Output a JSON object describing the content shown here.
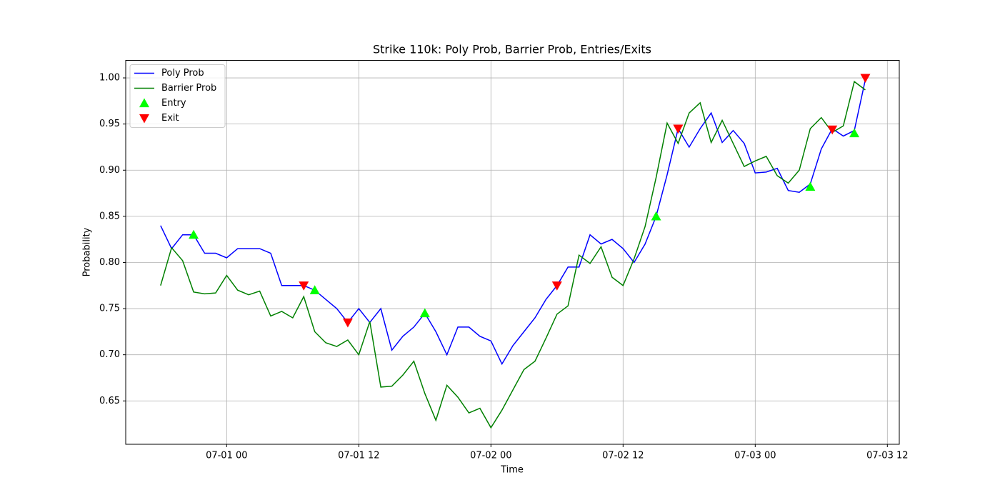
{
  "chart_data": {
    "type": "line",
    "title": "Strike 110k: Poly Prob, Barrier Prob, Entries/Exits",
    "x_label": "Time",
    "y_label": "Probability",
    "grid": true,
    "legend": "upper left",
    "xlim": [
      "06-30 14:50",
      "07-03 13:05"
    ],
    "xticks": [
      "07-01 00",
      "07-01 12",
      "07-02 00",
      "07-02 12",
      "07-03 00",
      "07-03 12"
    ],
    "ylim": [
      0.603,
      1.019
    ],
    "yticks": [
      0.65,
      {
        "value": 0.7,
        "label": "0.70"
      },
      0.75,
      {
        "value": 0.8,
        "label": "0.80"
      },
      0.85,
      {
        "value": 0.9,
        "label": "0.90"
      },
      0.95,
      {
        "value": 1.0,
        "label": "1.00"
      }
    ],
    "series": [
      {
        "name": "Poly Prob",
        "type": "line",
        "color": "#0000ff",
        "x": [
          "06-30 18",
          "06-30 19",
          "06-30 20",
          "06-30 21",
          "06-30 22",
          "06-30 23",
          "07-01 00",
          "07-01 01",
          "07-01 02",
          "07-01 03",
          "07-01 04",
          "07-01 05",
          "07-01 06",
          "07-01 07",
          "07-01 08",
          "07-01 09",
          "07-01 10",
          "07-01 11",
          "07-01 12",
          "07-01 13",
          "07-01 14",
          "07-01 15",
          "07-01 16",
          "07-01 17",
          "07-01 18",
          "07-01 19",
          "07-01 20",
          "07-01 21",
          "07-01 22",
          "07-01 23",
          "07-02 00",
          "07-02 01",
          "07-02 02",
          "07-02 03",
          "07-02 04",
          "07-02 05",
          "07-02 06",
          "07-02 07",
          "07-02 08",
          "07-02 09",
          "07-02 10",
          "07-02 11",
          "07-02 12",
          "07-02 13",
          "07-02 14",
          "07-02 15",
          "07-02 16",
          "07-02 17",
          "07-02 18",
          "07-02 19",
          "07-02 20",
          "07-02 21",
          "07-02 22",
          "07-02 23",
          "07-03 00",
          "07-03 01",
          "07-03 02",
          "07-03 03",
          "07-03 04",
          "07-03 05",
          "07-03 06",
          "07-03 07",
          "07-03 08",
          "07-03 09",
          "07-03 10"
        ],
        "values": [
          0.84,
          0.815,
          0.83,
          0.83,
          0.81,
          0.81,
          0.805,
          0.815,
          0.815,
          0.815,
          0.81,
          0.775,
          0.775,
          0.775,
          0.77,
          0.76,
          0.75,
          0.735,
          0.75,
          0.735,
          0.75,
          0.705,
          0.72,
          0.73,
          0.745,
          0.725,
          0.7,
          0.73,
          0.73,
          0.72,
          0.715,
          0.69,
          0.71,
          0.725,
          0.74,
          0.76,
          0.775,
          0.795,
          0.795,
          0.83,
          0.82,
          0.825,
          0.815,
          0.8,
          0.82,
          0.85,
          0.895,
          0.945,
          0.925,
          0.945,
          0.962,
          0.93,
          0.943,
          0.929,
          0.897,
          0.898,
          0.902,
          0.878,
          0.876,
          0.885,
          0.923,
          0.945,
          0.937,
          0.943,
          0.998
        ]
      },
      {
        "name": "Barrier Prob",
        "type": "line",
        "color": "#008000",
        "x": [
          "06-30 18",
          "06-30 19",
          "06-30 20",
          "06-30 21",
          "06-30 22",
          "06-30 23",
          "07-01 00",
          "07-01 01",
          "07-01 02",
          "07-01 03",
          "07-01 04",
          "07-01 05",
          "07-01 06",
          "07-01 07",
          "07-01 08",
          "07-01 09",
          "07-01 10",
          "07-01 11",
          "07-01 12",
          "07-01 13",
          "07-01 14",
          "07-01 15",
          "07-01 16",
          "07-01 17",
          "07-01 18",
          "07-01 19",
          "07-01 20",
          "07-01 21",
          "07-01 22",
          "07-01 23",
          "07-02 00",
          "07-02 01",
          "07-02 02",
          "07-02 03",
          "07-02 04",
          "07-02 05",
          "07-02 06",
          "07-02 07",
          "07-02 08",
          "07-02 09",
          "07-02 10",
          "07-02 11",
          "07-02 12",
          "07-02 13",
          "07-02 14",
          "07-02 15",
          "07-02 16",
          "07-02 17",
          "07-02 18",
          "07-02 19",
          "07-02 20",
          "07-02 21",
          "07-02 22",
          "07-02 23",
          "07-03 00",
          "07-03 01",
          "07-03 02",
          "07-03 03",
          "07-03 04",
          "07-03 05",
          "07-03 06",
          "07-03 07",
          "07-03 08",
          "07-03 09",
          "07-03 10"
        ],
        "values": [
          0.775,
          0.816,
          0.802,
          0.768,
          0.766,
          0.767,
          0.786,
          0.77,
          0.765,
          0.769,
          0.742,
          0.747,
          0.74,
          0.763,
          0.725,
          0.713,
          0.709,
          0.716,
          0.7,
          0.736,
          0.665,
          0.666,
          0.678,
          0.693,
          0.658,
          0.629,
          0.667,
          0.654,
          0.637,
          0.642,
          0.621,
          0.64,
          0.662,
          0.684,
          0.693,
          0.718,
          0.744,
          0.753,
          0.808,
          0.799,
          0.817,
          0.784,
          0.775,
          0.804,
          0.839,
          0.892,
          0.951,
          0.929,
          0.962,
          0.973,
          0.93,
          0.954,
          0.929,
          0.904,
          0.91,
          0.915,
          0.894,
          0.886,
          0.9,
          0.945,
          0.957,
          0.941,
          0.948,
          0.996,
          0.987
        ]
      },
      {
        "name": "Entry",
        "type": "scatter",
        "marker": "up",
        "color": "#00ff00",
        "x": [
          "06-30 21",
          "07-01 08",
          "07-01 18",
          "07-02 15",
          "07-03 05",
          "07-03 09"
        ],
        "values": [
          0.83,
          0.77,
          0.745,
          0.85,
          0.882,
          0.94
        ]
      },
      {
        "name": "Exit",
        "type": "scatter",
        "marker": "down",
        "color": "#ff0000",
        "x": [
          "07-01 07",
          "07-01 11",
          "07-02 06",
          "07-02 17",
          "07-03 07",
          "07-03 10"
        ],
        "values": [
          0.775,
          0.735,
          0.775,
          0.945,
          0.944,
          1.0
        ]
      }
    ]
  }
}
